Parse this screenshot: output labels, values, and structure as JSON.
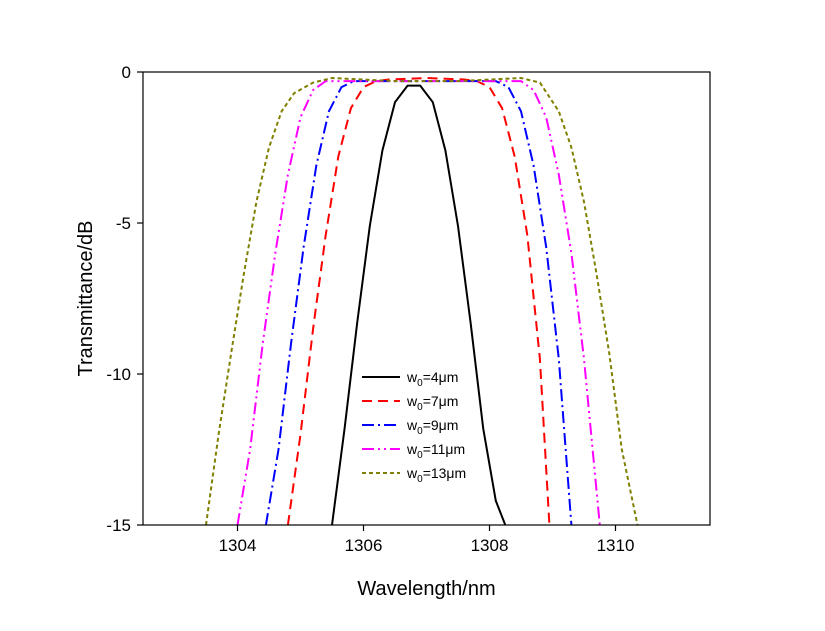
{
  "chart_data": {
    "type": "line",
    "title": "",
    "xlabel": "Wavelength/nm",
    "ylabel": "Transmittance/dB",
    "xlim": [
      1302.5,
      1311.5
    ],
    "ylim": [
      -15,
      0
    ],
    "xticks": [
      1304,
      1306,
      1308,
      1310
    ],
    "yticks": [
      0,
      -5,
      -10,
      -15
    ],
    "xtick_labels": [
      "1304",
      "1306",
      "1308",
      "1310"
    ],
    "ytick_labels": [
      "0",
      "-5",
      "-10",
      "-15"
    ],
    "grid": false,
    "legend_position": "lower-center inside plot",
    "series": [
      {
        "name": "w0=4μm",
        "legend_base": "w",
        "legend_sub": "0",
        "legend_rest": "=4μm",
        "color": "#000000",
        "dash": "solid",
        "x": [
          1305.5,
          1305.7,
          1305.9,
          1306.1,
          1306.3,
          1306.5,
          1306.7,
          1306.9,
          1307.1,
          1307.3,
          1307.5,
          1307.7,
          1307.9,
          1308.1,
          1308.25
        ],
        "y": [
          -15,
          -11.8,
          -8.3,
          -5.1,
          -2.6,
          -1.0,
          -0.45,
          -0.45,
          -1.0,
          -2.6,
          -5.1,
          -8.3,
          -11.8,
          -14.2,
          -15
        ]
      },
      {
        "name": "w0=7μm",
        "legend_base": "w",
        "legend_sub": "0",
        "legend_rest": "=7μm",
        "color": "#ff0000",
        "dash": "10,6",
        "x": [
          1304.8,
          1305.0,
          1305.2,
          1305.4,
          1305.6,
          1305.8,
          1306.0,
          1306.2,
          1306.4,
          1307.0,
          1307.6,
          1307.8,
          1308.0,
          1308.2,
          1308.4,
          1308.6,
          1308.8,
          1308.95
        ],
        "y": [
          -15,
          -12.0,
          -8.5,
          -5.4,
          -2.8,
          -1.2,
          -0.5,
          -0.3,
          -0.25,
          -0.2,
          -0.25,
          -0.3,
          -0.5,
          -1.2,
          -2.8,
          -5.4,
          -9.5,
          -15
        ]
      },
      {
        "name": "w0=9μm",
        "legend_base": "w",
        "legend_sub": "0",
        "legend_rest": "=9μm",
        "color": "#0000ff",
        "dash": "12,4,2,4",
        "x": [
          1304.45,
          1304.65,
          1304.85,
          1305.05,
          1305.25,
          1305.45,
          1305.65,
          1305.85,
          1306.3,
          1307.0,
          1307.7,
          1308.1,
          1308.3,
          1308.5,
          1308.7,
          1308.9,
          1309.1,
          1309.3
        ],
        "y": [
          -15,
          -12.5,
          -9.0,
          -5.8,
          -3.1,
          -1.3,
          -0.5,
          -0.3,
          -0.3,
          -0.3,
          -0.3,
          -0.3,
          -0.5,
          -1.3,
          -3.1,
          -5.8,
          -9.5,
          -15
        ]
      },
      {
        "name": "w0=11μm",
        "legend_base": "w",
        "legend_sub": "0",
        "legend_rest": "=11μm",
        "color": "#ff00ff",
        "dash": "12,4,2,4,2,4",
        "x": [
          1304.0,
          1304.2,
          1304.4,
          1304.6,
          1304.8,
          1305.0,
          1305.2,
          1305.4,
          1306.0,
          1307.0,
          1308.0,
          1308.5,
          1308.7,
          1308.9,
          1309.1,
          1309.3,
          1309.5,
          1309.75
        ],
        "y": [
          -15,
          -12.5,
          -9.0,
          -6.0,
          -3.4,
          -1.5,
          -0.6,
          -0.3,
          -0.3,
          -0.3,
          -0.3,
          -0.3,
          -0.6,
          -1.5,
          -3.4,
          -6.0,
          -9.5,
          -15
        ]
      },
      {
        "name": "w0=13μm",
        "legend_base": "w",
        "legend_sub": "0",
        "legend_rest": "=13μm",
        "color": "#808000",
        "dash": "4,3",
        "x": [
          1303.5,
          1303.7,
          1303.9,
          1304.1,
          1304.3,
          1304.5,
          1304.7,
          1304.9,
          1305.2,
          1305.5,
          1306.5,
          1307.5,
          1308.5,
          1308.8,
          1309.1,
          1309.3,
          1309.5,
          1309.7,
          1309.9,
          1310.1,
          1310.35
        ],
        "y": [
          -15,
          -12.0,
          -9.3,
          -6.7,
          -4.3,
          -2.5,
          -1.3,
          -0.7,
          -0.35,
          -0.2,
          -0.3,
          -0.3,
          -0.2,
          -0.35,
          -1.3,
          -2.5,
          -4.3,
          -6.7,
          -9.3,
          -12.5,
          -15
        ]
      }
    ]
  }
}
